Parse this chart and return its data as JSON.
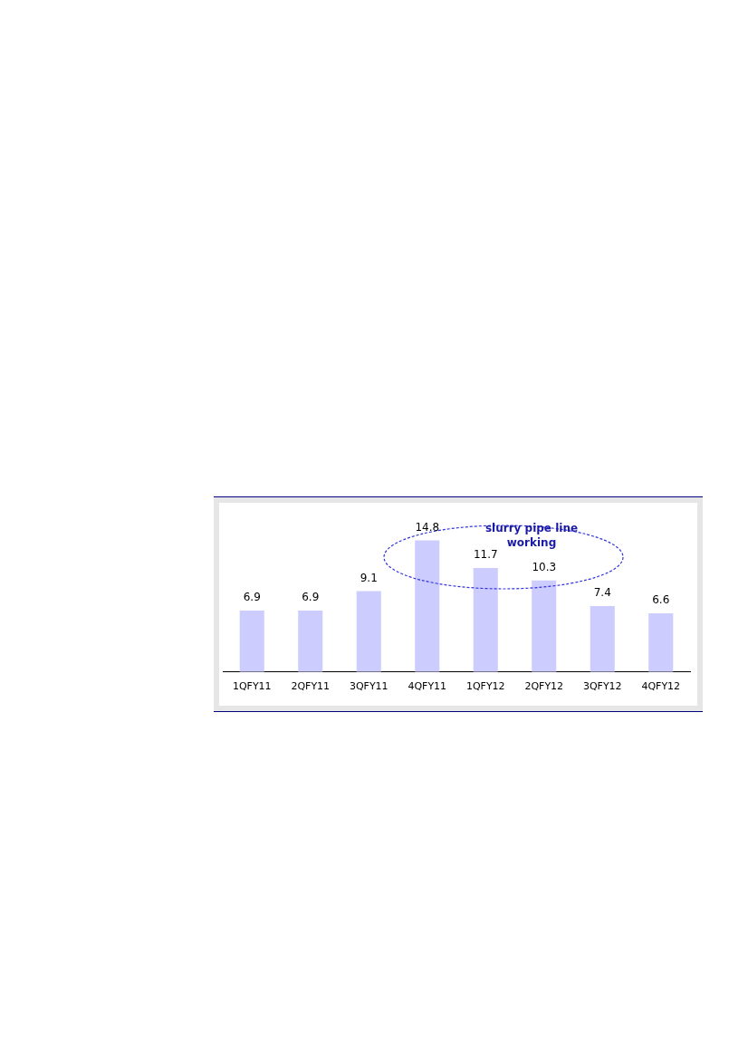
{
  "chart_data": {
    "type": "bar",
    "categories": [
      "1QFY11",
      "2QFY11",
      "3QFY11",
      "4QFY11",
      "1QFY12",
      "2QFY12",
      "3QFY12",
      "4QFY12"
    ],
    "values": [
      6.9,
      6.9,
      9.1,
      14.8,
      11.7,
      10.3,
      7.4,
      6.6
    ],
    "color": "#ccccff",
    "data_labels": true,
    "grid": false,
    "legend": false,
    "annotations": [
      "slurry pipe line working"
    ]
  }
}
